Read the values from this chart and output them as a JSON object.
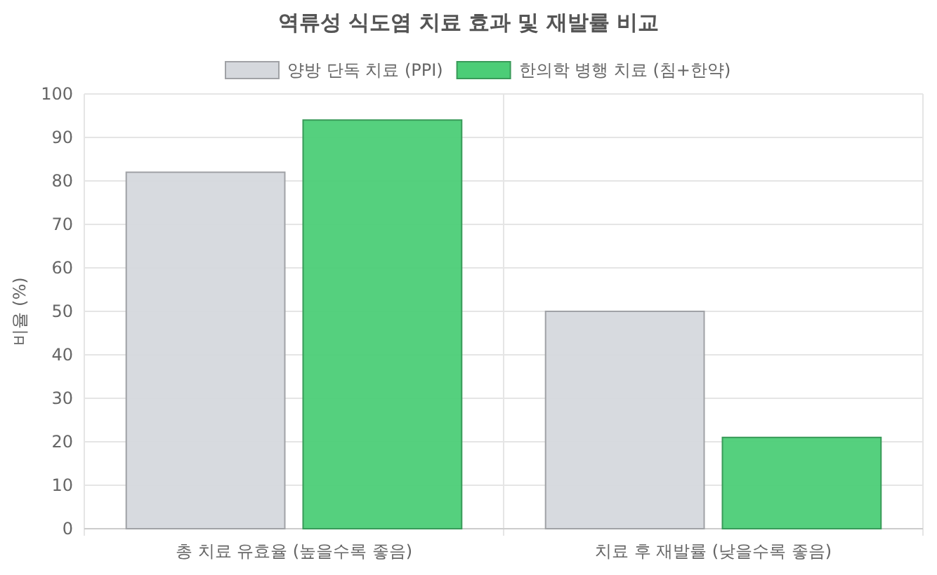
{
  "chart_data": {
    "type": "bar",
    "title": "역류성 식도염 치료 효과 및 재발률 비교",
    "ylabel": "비율 (%)",
    "categories": [
      "총 치료 유효율 (높을수록 좋음)",
      "치료 후 재발률 (낮을수록 좋음)"
    ],
    "series": [
      {
        "name": "양방 단독 치료 (PPI)",
        "color": "#d5d8dd",
        "values": [
          82,
          50
        ]
      },
      {
        "name": "한의학 병행 치료 (침+한약)",
        "color": "#4ccd77",
        "values": [
          94,
          21
        ]
      }
    ],
    "ylim": [
      0,
      100
    ],
    "yticks": [
      0,
      10,
      20,
      30,
      40,
      50,
      60,
      70,
      80,
      90,
      100
    ],
    "grid": true,
    "legend": "top"
  }
}
